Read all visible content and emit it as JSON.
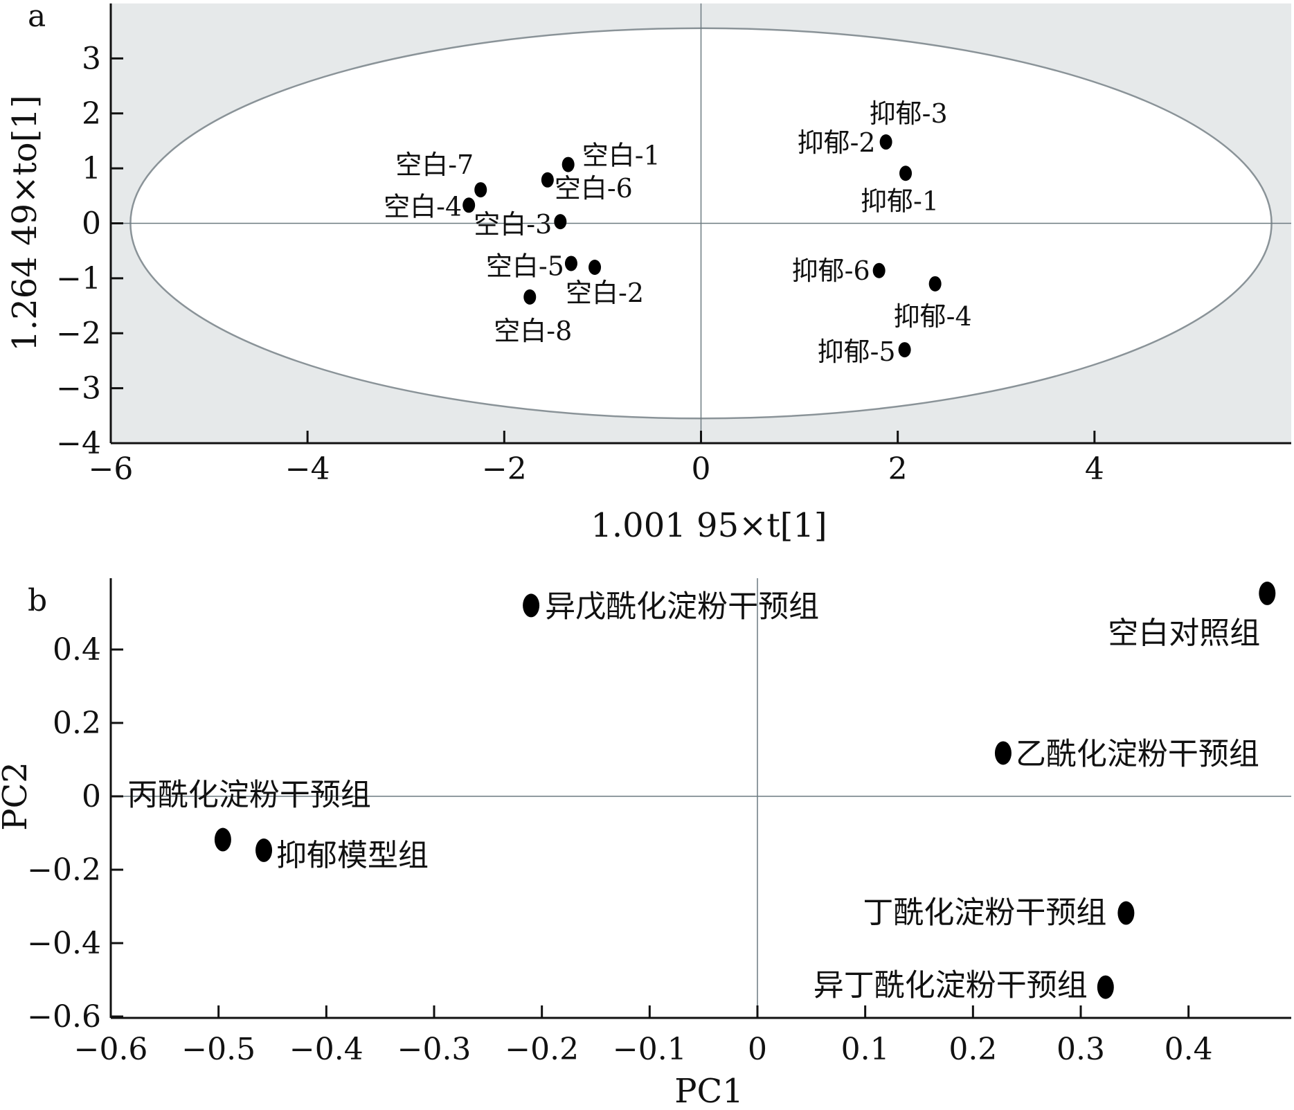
{
  "chart_data": [
    {
      "panel": "a",
      "type": "scatter",
      "xlabel": "1.001 95×t[1]",
      "ylabel": "1.264 49×to[1]",
      "xlim": [
        -6,
        6
      ],
      "ylim": [
        -4,
        4
      ],
      "xticks": [
        "−6",
        "−4",
        "−2",
        "0",
        "2",
        "4"
      ],
      "yticks": [
        "3",
        "2",
        "1",
        "0",
        "−1",
        "−2",
        "−3",
        "−4"
      ],
      "background": "#e6e9ea",
      "ellipse": {
        "rx": 5.8,
        "ry": 3.55
      },
      "points": [
        {
          "label": "空白-1",
          "x": -1.35,
          "y": 1.07
        },
        {
          "label": "空白-2",
          "x": -1.08,
          "y": -0.8
        },
        {
          "label": "空白-3",
          "x": -1.43,
          "y": 0.03
        },
        {
          "label": "空白-4",
          "x": -2.36,
          "y": 0.33
        },
        {
          "label": "空白-5",
          "x": -1.32,
          "y": -0.73
        },
        {
          "label": "空白-6",
          "x": -1.56,
          "y": 0.79
        },
        {
          "label": "空白-7",
          "x": -2.24,
          "y": 0.61
        },
        {
          "label": "空白-8",
          "x": -1.74,
          "y": -1.34
        },
        {
          "label": "抑郁-1",
          "x": 2.08,
          "y": 0.91
        },
        {
          "label": "抑郁-2",
          "x": 1.88,
          "y": 1.48
        },
        {
          "label": "抑郁-3",
          "x": 1.88,
          "y": 1.48
        },
        {
          "label": "抑郁-4",
          "x": 2.38,
          "y": -1.1
        },
        {
          "label": "抑郁-5",
          "x": 2.07,
          "y": -2.3
        },
        {
          "label": "抑郁-6",
          "x": 1.81,
          "y": -0.86
        }
      ]
    },
    {
      "panel": "b",
      "type": "scatter",
      "xlabel": "PC1",
      "ylabel": "PC2",
      "xlim": [
        -0.6,
        0.5
      ],
      "ylim": [
        -0.6,
        0.6
      ],
      "xticks": [
        "−0.6",
        "−0.5",
        "−0.4",
        "−0.3",
        "−0.2",
        "−0.1",
        "0",
        "0.1",
        "0.2",
        "0.3",
        "0.4"
      ],
      "yticks": [
        "0.4",
        "0.2",
        "0",
        "−0.2",
        "−0.4",
        "−0.6"
      ],
      "points": [
        {
          "label": "异戊酰化淀粉干预组",
          "x": -0.21,
          "y": 0.52
        },
        {
          "label": "空白对照组",
          "x": 0.473,
          "y": 0.553
        },
        {
          "label": "乙酰化淀粉干预组",
          "x": 0.228,
          "y": 0.118
        },
        {
          "label": "丙酰化淀粉干预组",
          "x": -0.496,
          "y": -0.118
        },
        {
          "label": "抑郁模型组",
          "x": -0.458,
          "y": -0.147
        },
        {
          "label": "丁酰化淀粉干预组",
          "x": 0.342,
          "y": -0.318
        },
        {
          "label": "异丁酰化淀粉干预组",
          "x": 0.323,
          "y": -0.52
        }
      ]
    }
  ]
}
